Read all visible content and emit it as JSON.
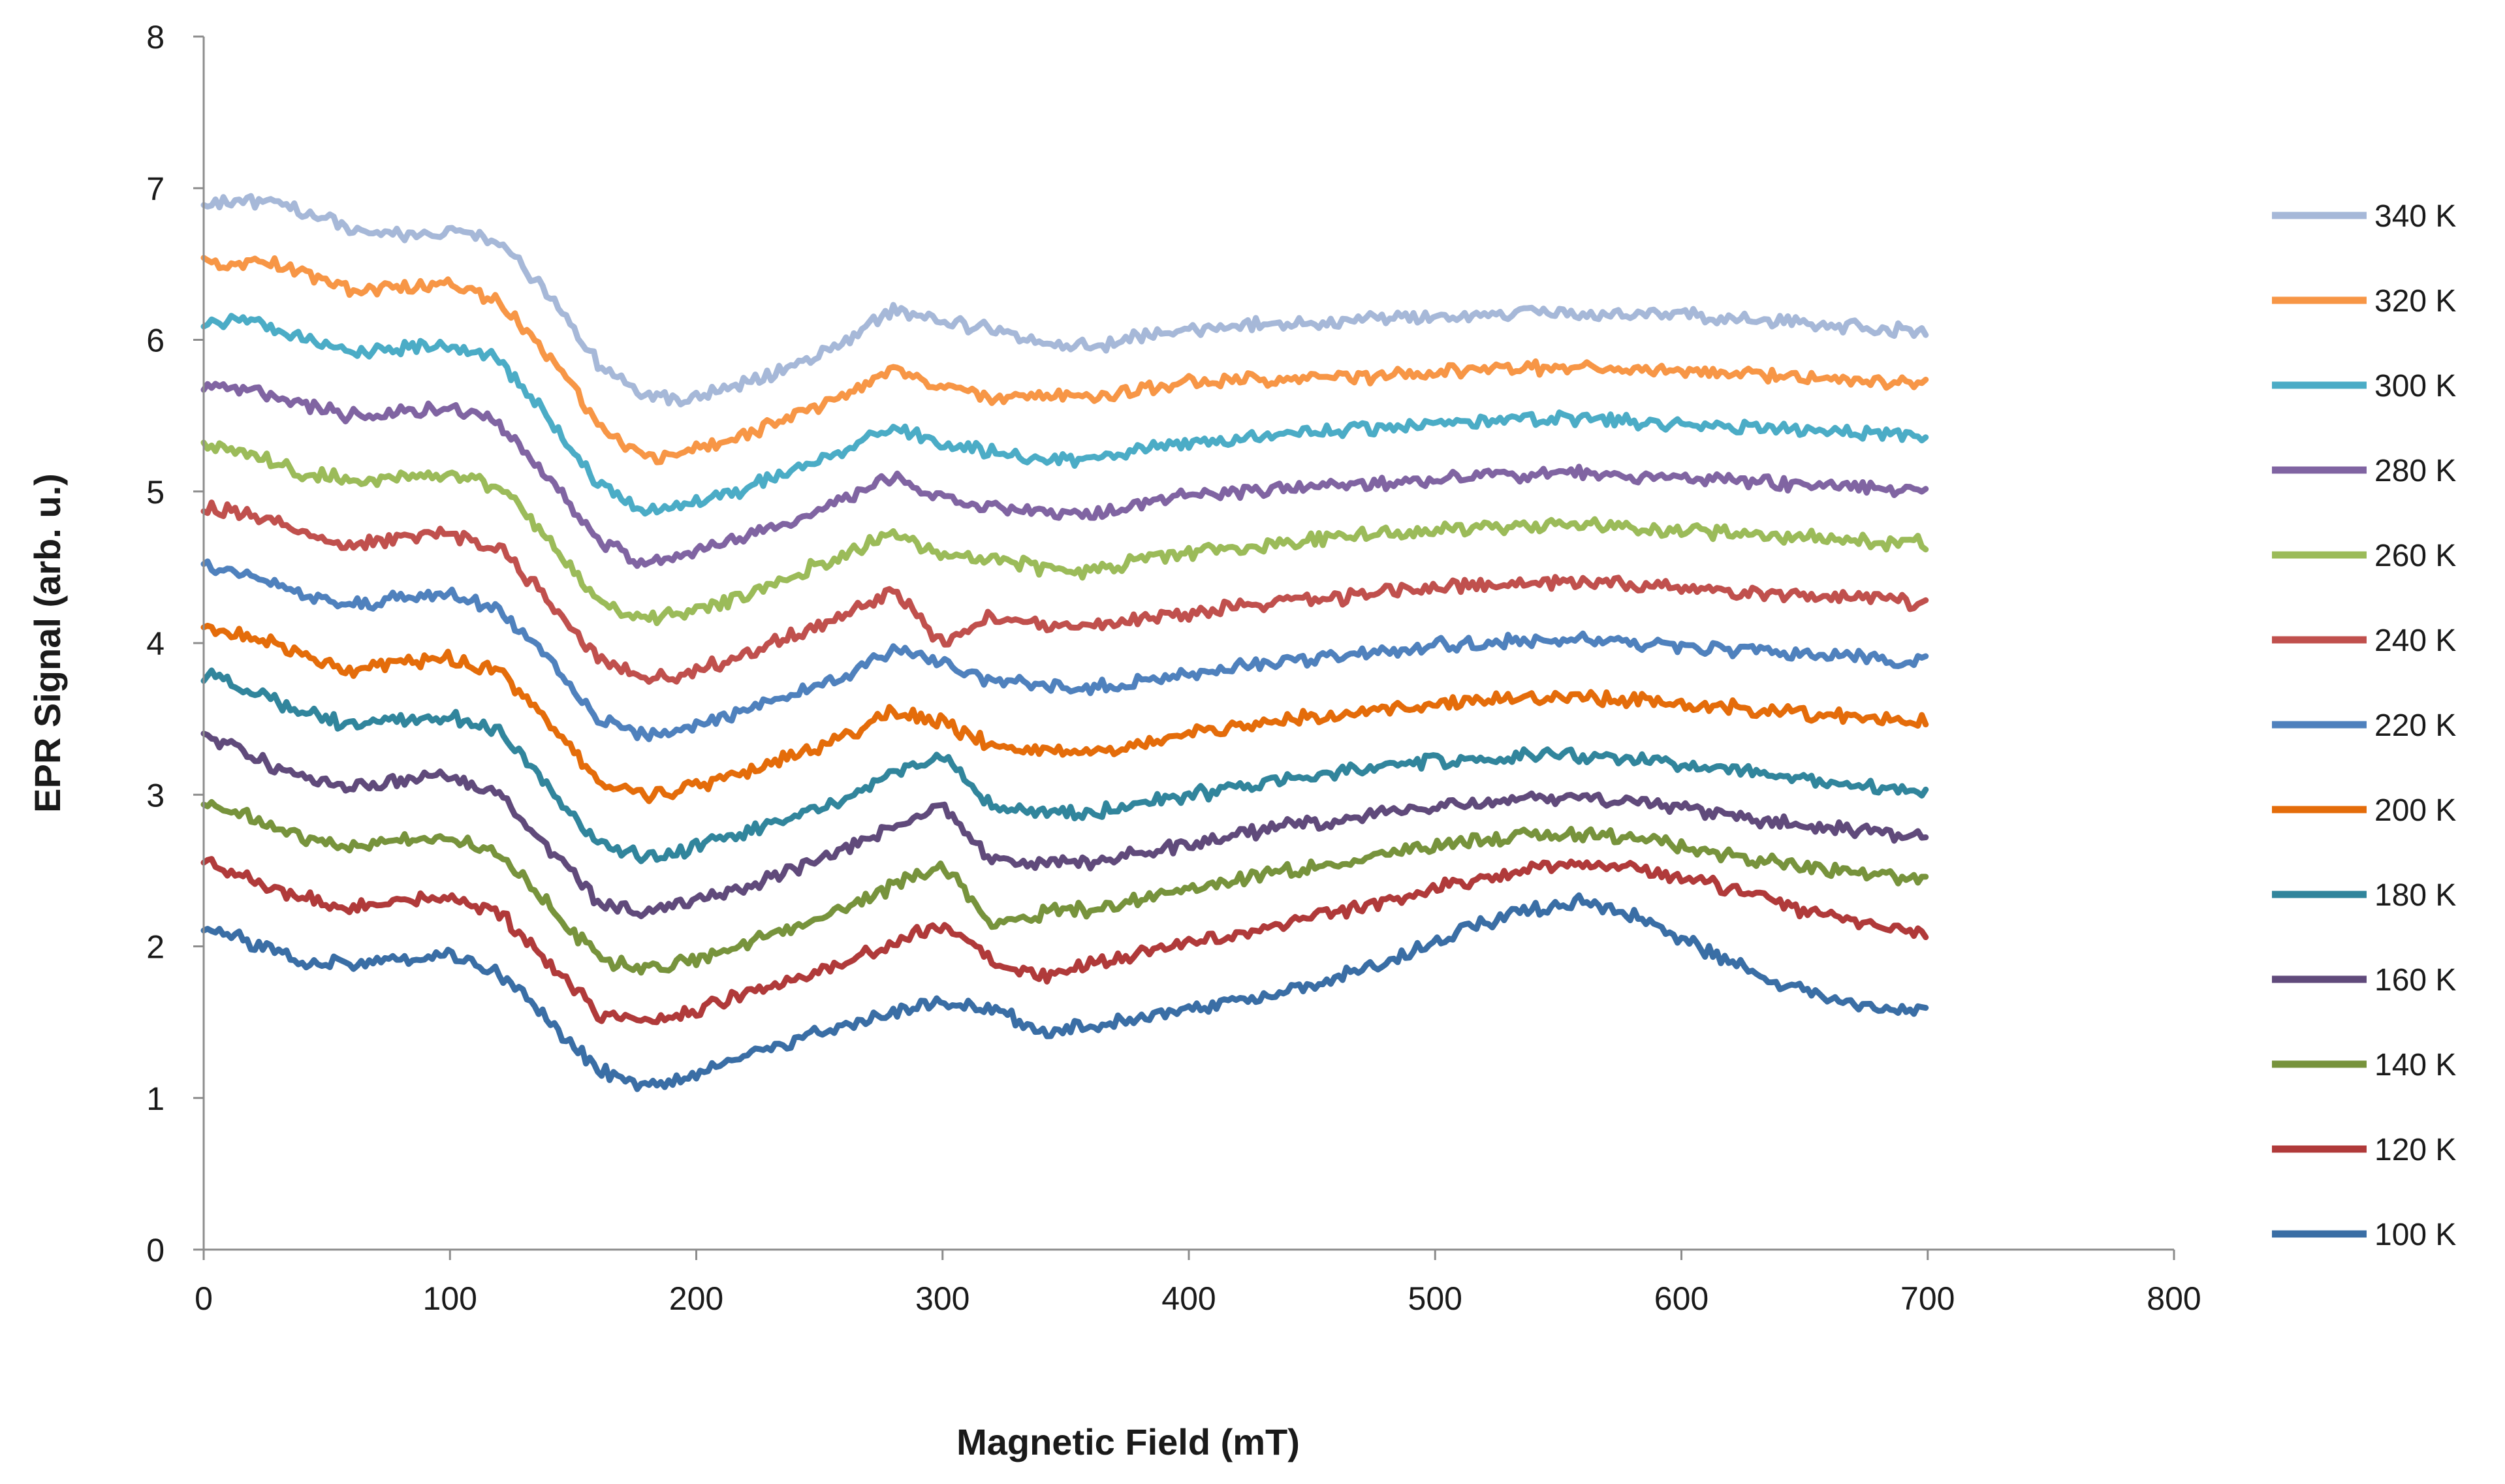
{
  "chart_data": {
    "type": "line",
    "title": "",
    "xlabel": "Magnetic Field (mT)",
    "ylabel": "EPR Signal (arb. u.)",
    "xlim": [
      0,
      800
    ],
    "ylim": [
      0,
      8
    ],
    "x_ticks": [
      "0",
      "100",
      "200",
      "300",
      "400",
      "500",
      "600",
      "700",
      "800"
    ],
    "y_ticks": [
      "0",
      "1",
      "2",
      "3",
      "4",
      "5",
      "6",
      "7",
      "8"
    ],
    "grid": false,
    "legend_position": "right",
    "x": [
      0,
      20,
      40,
      60,
      80,
      100,
      120,
      140,
      160,
      180,
      200,
      220,
      240,
      260,
      280,
      300,
      320,
      340,
      360,
      380,
      400,
      420,
      440,
      460,
      480,
      500,
      520,
      540,
      560,
      580,
      600,
      620,
      640,
      660,
      680,
      700
    ],
    "series": [
      {
        "name": "340 K",
        "color": "#a6b8d8",
        "values": [
          6.9,
          6.92,
          6.85,
          6.72,
          6.7,
          6.72,
          6.65,
          6.3,
          5.85,
          5.62,
          5.62,
          5.72,
          5.82,
          5.98,
          6.2,
          6.12,
          6.06,
          5.98,
          5.96,
          6.02,
          6.06,
          6.1,
          6.1,
          6.12,
          6.14,
          6.15,
          6.16,
          6.18,
          6.18,
          6.17,
          6.16,
          6.14,
          6.12,
          6.1,
          6.07,
          6.05
        ]
      },
      {
        "name": "320 K",
        "color": "#f79646",
        "values": [
          6.5,
          6.52,
          6.45,
          6.32,
          6.35,
          6.38,
          6.25,
          5.9,
          5.45,
          5.22,
          5.28,
          5.38,
          5.5,
          5.62,
          5.82,
          5.68,
          5.62,
          5.62,
          5.62,
          5.68,
          5.72,
          5.74,
          5.74,
          5.75,
          5.77,
          5.78,
          5.8,
          5.82,
          5.82,
          5.8,
          5.8,
          5.78,
          5.76,
          5.74,
          5.72,
          5.7
        ]
      },
      {
        "name": "300 K",
        "color": "#4bacc6",
        "values": [
          6.1,
          6.12,
          6.02,
          5.92,
          5.95,
          5.98,
          5.86,
          5.5,
          5.05,
          4.85,
          4.92,
          5.02,
          5.14,
          5.28,
          5.42,
          5.32,
          5.26,
          5.22,
          5.2,
          5.28,
          5.32,
          5.35,
          5.38,
          5.4,
          5.43,
          5.45,
          5.46,
          5.48,
          5.48,
          5.46,
          5.45,
          5.43,
          5.42,
          5.4,
          5.38,
          5.37
        ]
      },
      {
        "name": "280 K",
        "color": "#8064a2",
        "values": [
          5.7,
          5.68,
          5.58,
          5.5,
          5.52,
          5.55,
          5.45,
          5.1,
          4.68,
          4.52,
          4.6,
          4.7,
          4.82,
          4.96,
          5.1,
          4.96,
          4.9,
          4.86,
          4.85,
          4.92,
          4.98,
          5.0,
          5.02,
          5.04,
          5.06,
          5.08,
          5.1,
          5.12,
          5.12,
          5.1,
          5.09,
          5.08,
          5.06,
          5.04,
          5.02,
          5.01
        ]
      },
      {
        "name": "260 K",
        "color": "#9bbb59",
        "values": [
          5.3,
          5.25,
          5.12,
          5.08,
          5.1,
          5.12,
          5.02,
          4.68,
          4.28,
          4.15,
          4.22,
          4.32,
          4.45,
          4.58,
          4.72,
          4.58,
          4.55,
          4.5,
          4.48,
          4.55,
          4.6,
          4.63,
          4.66,
          4.7,
          4.73,
          4.75,
          4.76,
          4.78,
          4.78,
          4.76,
          4.74,
          4.72,
          4.7,
          4.69,
          4.67,
          4.66
        ]
      },
      {
        "name": "240 K",
        "color": "#c0504d",
        "values": [
          4.9,
          4.85,
          4.72,
          4.65,
          4.7,
          4.72,
          4.62,
          4.28,
          3.9,
          3.75,
          3.82,
          3.92,
          4.05,
          4.18,
          4.35,
          4.0,
          4.18,
          4.12,
          4.1,
          4.16,
          4.2,
          4.24,
          4.28,
          4.3,
          4.34,
          4.37,
          4.38,
          4.4,
          4.4,
          4.38,
          4.36,
          4.34,
          4.32,
          4.3,
          4.28,
          4.27
        ]
      },
      {
        "name": "220 K",
        "color": "#4f81bd",
        "values": [
          4.5,
          4.45,
          4.32,
          4.25,
          4.3,
          4.32,
          4.22,
          3.9,
          3.5,
          3.38,
          3.45,
          3.55,
          3.66,
          3.78,
          3.95,
          3.88,
          3.75,
          3.72,
          3.7,
          3.76,
          3.8,
          3.84,
          3.88,
          3.9,
          3.94,
          3.98,
          4.0,
          4.02,
          4.02,
          4.0,
          3.98,
          3.96,
          3.94,
          3.92,
          3.9,
          3.88
        ]
      },
      {
        "name": "200 K",
        "color": "#e46c0a",
        "values": [
          4.1,
          4.05,
          3.92,
          3.8,
          3.88,
          3.9,
          3.82,
          3.48,
          3.08,
          2.98,
          3.05,
          3.15,
          3.26,
          3.38,
          3.55,
          3.48,
          3.32,
          3.3,
          3.28,
          3.34,
          3.4,
          3.45,
          3.5,
          3.52,
          3.56,
          3.6,
          3.62,
          3.64,
          3.64,
          3.62,
          3.6,
          3.58,
          3.55,
          3.52,
          3.5,
          3.48
        ]
      },
      {
        "name": "180 K",
        "color": "#31859c",
        "values": [
          3.8,
          3.68,
          3.55,
          3.45,
          3.5,
          3.52,
          3.42,
          3.05,
          2.68,
          2.58,
          2.65,
          2.75,
          2.86,
          2.98,
          3.15,
          3.25,
          2.92,
          2.9,
          2.88,
          2.94,
          3.0,
          3.05,
          3.1,
          3.14,
          3.18,
          3.22,
          3.24,
          3.26,
          3.26,
          3.24,
          3.2,
          3.16,
          3.12,
          3.08,
          3.05,
          3.03
        ]
      },
      {
        "name": "160 K",
        "color": "#604a7b",
        "values": [
          3.4,
          3.25,
          3.12,
          3.05,
          3.1,
          3.12,
          3.0,
          2.65,
          2.3,
          2.22,
          2.3,
          2.4,
          2.52,
          2.64,
          2.8,
          2.92,
          2.55,
          2.55,
          2.55,
          2.62,
          2.68,
          2.74,
          2.8,
          2.84,
          2.88,
          2.92,
          2.95,
          2.98,
          2.98,
          2.96,
          2.92,
          2.86,
          2.82,
          2.78,
          2.75,
          2.73
        ]
      },
      {
        "name": "140 K",
        "color": "#77933c",
        "values": [
          2.95,
          2.85,
          2.72,
          2.65,
          2.7,
          2.72,
          2.62,
          2.28,
          1.92,
          1.85,
          1.92,
          2.02,
          2.12,
          2.24,
          2.4,
          2.55,
          2.15,
          2.22,
          2.25,
          2.32,
          2.38,
          2.44,
          2.5,
          2.55,
          2.6,
          2.66,
          2.7,
          2.74,
          2.74,
          2.72,
          2.66,
          2.6,
          2.55,
          2.5,
          2.47,
          2.45
        ]
      },
      {
        "name": "120 K",
        "color": "#b03a3a",
        "values": [
          2.55,
          2.45,
          2.32,
          2.25,
          2.3,
          2.32,
          2.22,
          1.9,
          1.56,
          1.5,
          1.58,
          1.68,
          1.78,
          1.9,
          2.02,
          2.15,
          1.9,
          1.8,
          1.88,
          1.95,
          2.02,
          2.08,
          2.16,
          2.22,
          2.3,
          2.38,
          2.46,
          2.52,
          2.55,
          2.52,
          2.46,
          2.38,
          2.28,
          2.2,
          2.14,
          2.1
        ]
      },
      {
        "name": "100 K",
        "color": "#3a6ea5",
        "values": [
          2.12,
          2.02,
          1.9,
          1.88,
          1.92,
          1.95,
          1.82,
          1.52,
          1.18,
          1.08,
          1.16,
          1.28,
          1.38,
          1.48,
          1.56,
          1.62,
          1.6,
          1.42,
          1.48,
          1.52,
          1.58,
          1.64,
          1.72,
          1.8,
          1.9,
          2.02,
          2.15,
          2.25,
          2.3,
          2.2,
          2.05,
          1.9,
          1.76,
          1.66,
          1.6,
          1.58
        ]
      }
    ]
  }
}
